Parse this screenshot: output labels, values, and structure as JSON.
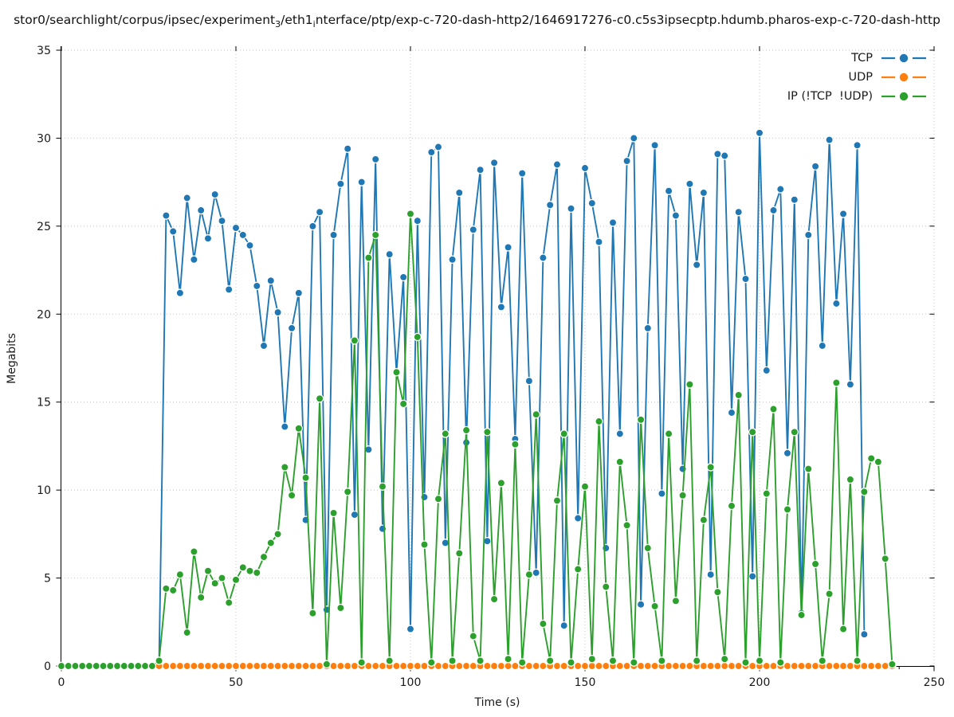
{
  "title": {
    "part1": "stor0/searchlight/corpus/ipsec/experiment",
    "sub1": "3",
    "part2": "/eth1",
    "sub2": "i",
    "part3": "nterface/ptp/exp-c-720-dash-http2/1646917276-c0.c5s3ipsecptp.hdumb.pharos-exp-c-720-dash-http"
  },
  "chart_data": {
    "type": "line",
    "marker": "circle",
    "title": "stor0/searchlight/corpus/ipsec/experiment_3/eth1_interface/ptp/exp-c-720-dash-http2/1646917276-c0.c5s3ipsecptp.hdumb.pharos-exp-c-720-dash-http",
    "xlabel": "Time (s)",
    "ylabel": "Megabits",
    "xlim": [
      0,
      250
    ],
    "ylim": [
      0,
      35
    ],
    "x_ticks": [
      0,
      50,
      100,
      150,
      200,
      250
    ],
    "y_ticks": [
      0,
      5,
      10,
      15,
      20,
      25,
      30,
      35
    ],
    "grid": true,
    "legend_position": "top-right",
    "x_start": 0,
    "x_step": 2,
    "series": [
      {
        "name": "TCP",
        "color": "#1f77b4",
        "values": [
          0,
          0,
          0,
          0,
          0,
          0,
          0,
          0,
          0,
          0,
          0,
          0,
          0,
          0,
          0.2,
          25.6,
          24.7,
          21.2,
          26.6,
          23.1,
          25.9,
          24.3,
          26.8,
          25.3,
          21.4,
          24.9,
          24.5,
          23.9,
          21.6,
          18.2,
          21.9,
          20.1,
          13.6,
          19.2,
          21.2,
          8.3,
          25.0,
          25.8,
          3.2,
          24.5,
          27.4,
          29.4,
          8.6,
          27.5,
          12.3,
          28.8,
          7.8,
          23.4,
          16.7,
          22.1,
          2.1,
          25.3,
          9.6,
          29.2,
          29.5,
          7.0,
          23.1,
          26.9,
          12.7,
          24.8,
          28.2,
          7.1,
          28.6,
          20.4,
          23.8,
          12.9,
          28.0,
          16.2,
          5.3,
          23.2,
          26.2,
          28.5,
          2.3,
          26.0,
          8.4,
          28.3,
          26.3,
          24.1,
          6.7,
          25.2,
          13.2,
          28.7,
          30.0,
          3.5,
          19.2,
          29.6,
          9.8,
          27.0,
          25.6,
          11.2,
          27.4,
          22.8,
          26.9,
          5.2,
          29.1,
          29.0,
          14.4,
          25.8,
          22.0,
          5.1,
          30.3,
          16.8,
          25.9,
          27.1,
          12.1,
          26.5,
          3.0,
          24.5,
          28.4,
          18.2,
          29.9,
          20.6,
          25.7,
          16.0,
          29.6,
          1.8,
          null,
          null,
          null,
          null
        ]
      },
      {
        "name": "UDP",
        "color": "#ff7f0e",
        "values": [
          0,
          0,
          0,
          0,
          0,
          0,
          0,
          0,
          0,
          0,
          0,
          0,
          0,
          0,
          0,
          0,
          0,
          0,
          0,
          0,
          0,
          0,
          0,
          0,
          0,
          0,
          0,
          0,
          0,
          0,
          0,
          0,
          0,
          0,
          0,
          0,
          0,
          0,
          0,
          0,
          0,
          0,
          0,
          0,
          0,
          0,
          0,
          0,
          0,
          0,
          0,
          0,
          0,
          0,
          0,
          0,
          0,
          0,
          0,
          0,
          0,
          0,
          0,
          0,
          0,
          0,
          0,
          0,
          0,
          0,
          0,
          0,
          0,
          0,
          0,
          0,
          0,
          0,
          0,
          0,
          0,
          0,
          0,
          0,
          0,
          0,
          0,
          0,
          0,
          0,
          0,
          0,
          0,
          0,
          0,
          0,
          0,
          0,
          0,
          0,
          0,
          0,
          0,
          0,
          0,
          0,
          0,
          0,
          0,
          0,
          0,
          0,
          0,
          0,
          0,
          0,
          0,
          0,
          0,
          0
        ]
      },
      {
        "name": "IP (!TCP  !UDP)",
        "color": "#2ca02c",
        "values": [
          0,
          0,
          0,
          0,
          0,
          0,
          0,
          0,
          0,
          0,
          0,
          0,
          0,
          0,
          0.3,
          4.4,
          4.3,
          5.2,
          1.9,
          6.5,
          3.9,
          5.4,
          4.7,
          5.0,
          3.6,
          4.9,
          5.6,
          5.4,
          5.3,
          6.2,
          7.0,
          7.5,
          11.3,
          9.7,
          13.5,
          10.7,
          3.0,
          15.2,
          0.1,
          8.7,
          3.3,
          9.9,
          18.5,
          0.2,
          23.2,
          24.5,
          10.2,
          0.3,
          16.7,
          14.9,
          25.7,
          18.7,
          6.9,
          0.2,
          9.5,
          13.2,
          0.3,
          6.4,
          13.4,
          1.7,
          0.3,
          13.3,
          3.8,
          10.4,
          0.4,
          12.6,
          0.2,
          5.2,
          14.3,
          2.4,
          0.3,
          9.4,
          13.2,
          0.2,
          5.5,
          10.2,
          0.4,
          13.9,
          4.5,
          0.3,
          11.6,
          8.0,
          0.2,
          14.0,
          6.7,
          3.4,
          0.3,
          13.2,
          3.7,
          9.7,
          16.0,
          0.3,
          8.3,
          11.3,
          4.2,
          0.4,
          9.1,
          15.4,
          0.2,
          13.3,
          0.3,
          9.8,
          14.6,
          0.2,
          8.9,
          13.3,
          2.9,
          11.2,
          5.8,
          0.3,
          4.1,
          16.1,
          2.1,
          10.6,
          0.3,
          9.9,
          11.8,
          11.6,
          6.1,
          0.1
        ]
      }
    ]
  }
}
